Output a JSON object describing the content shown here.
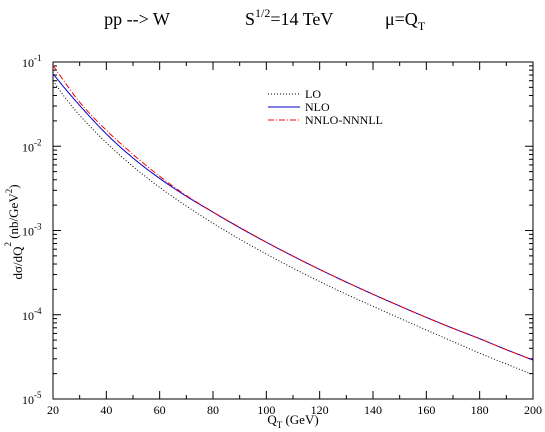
{
  "chart_data": {
    "type": "line",
    "title": {
      "process": "pp --> W",
      "energy_base": "S",
      "energy_exp": "1/2",
      "energy_rest": "=14 TeV",
      "scale_base": "μ=Q",
      "scale_sub": "T"
    },
    "xlabel": {
      "base": "Q",
      "sub": "T",
      "rest": " (GeV)"
    },
    "ylabel": {
      "p1": "dσ/dQ",
      "sub1": "T",
      "sup1": "2",
      "p2": " (nb/GeV",
      "sup2": "2",
      "p3": ")"
    },
    "x_range": [
      20,
      200
    ],
    "y_range": [
      1e-05,
      0.1
    ],
    "y_scale": "log",
    "grid": false,
    "legend_position": "top-center",
    "x_ticks": [
      {
        "value": 20,
        "label": "20"
      },
      {
        "value": 40,
        "label": "40"
      },
      {
        "value": 60,
        "label": "60"
      },
      {
        "value": 80,
        "label": "80"
      },
      {
        "value": 100,
        "label": "100"
      },
      {
        "value": 120,
        "label": "120"
      },
      {
        "value": 140,
        "label": "140"
      },
      {
        "value": 160,
        "label": "160"
      },
      {
        "value": 180,
        "label": "180"
      },
      {
        "value": 200,
        "label": "200"
      }
    ],
    "y_ticks": [
      {
        "value": 1e-05,
        "base": "10",
        "exp": "-5"
      },
      {
        "value": 0.0001,
        "base": "10",
        "exp": "-4"
      },
      {
        "value": 0.001,
        "base": "10",
        "exp": "-3"
      },
      {
        "value": 0.01,
        "base": "10",
        "exp": "-2"
      },
      {
        "value": 0.1,
        "base": "10",
        "exp": "-1"
      }
    ],
    "x": [
      20,
      25,
      30,
      40,
      50,
      60,
      70,
      80,
      90,
      100,
      110,
      120,
      130,
      140,
      150,
      160,
      170,
      180,
      190,
      200
    ],
    "series": [
      {
        "name": "LO",
        "color": "#000000",
        "style": "dotted",
        "values": [
          0.0596,
          0.0361,
          0.0233,
          0.011,
          0.00575,
          0.00325,
          0.00195,
          0.00122,
          0.000789,
          0.000525,
          0.000357,
          0.000248,
          0.000175,
          0.000126,
          9.1e-05,
          6.6e-05,
          4.8e-05,
          3.5e-05,
          2.6e-05,
          1.95e-05
        ]
      },
      {
        "name": "NLO",
        "color": "#0000cc",
        "style": "solid",
        "values": [
          0.0724,
          0.0464,
          0.0305,
          0.014,
          0.00725,
          0.00415,
          0.00255,
          0.00165,
          0.00108,
          0.000725,
          0.000496,
          0.000345,
          0.000244,
          0.000175,
          0.000127,
          9.3e-05,
          6.9e-05,
          5.2e-05,
          3.85e-05,
          2.9e-05
        ]
      },
      {
        "name": "NNLO-NNNLL",
        "color": "#ff0000",
        "style": "dashdot",
        "values": [
          0.0912,
          0.0543,
          0.0333,
          0.0155,
          0.008,
          0.0044,
          0.0026,
          0.00166,
          0.00109,
          0.000727,
          0.000497,
          0.000345,
          0.000244,
          0.000175,
          0.000127,
          9.3e-05,
          6.9e-05,
          5.2e-05,
          3.85e-05,
          2.9e-05
        ]
      }
    ]
  }
}
